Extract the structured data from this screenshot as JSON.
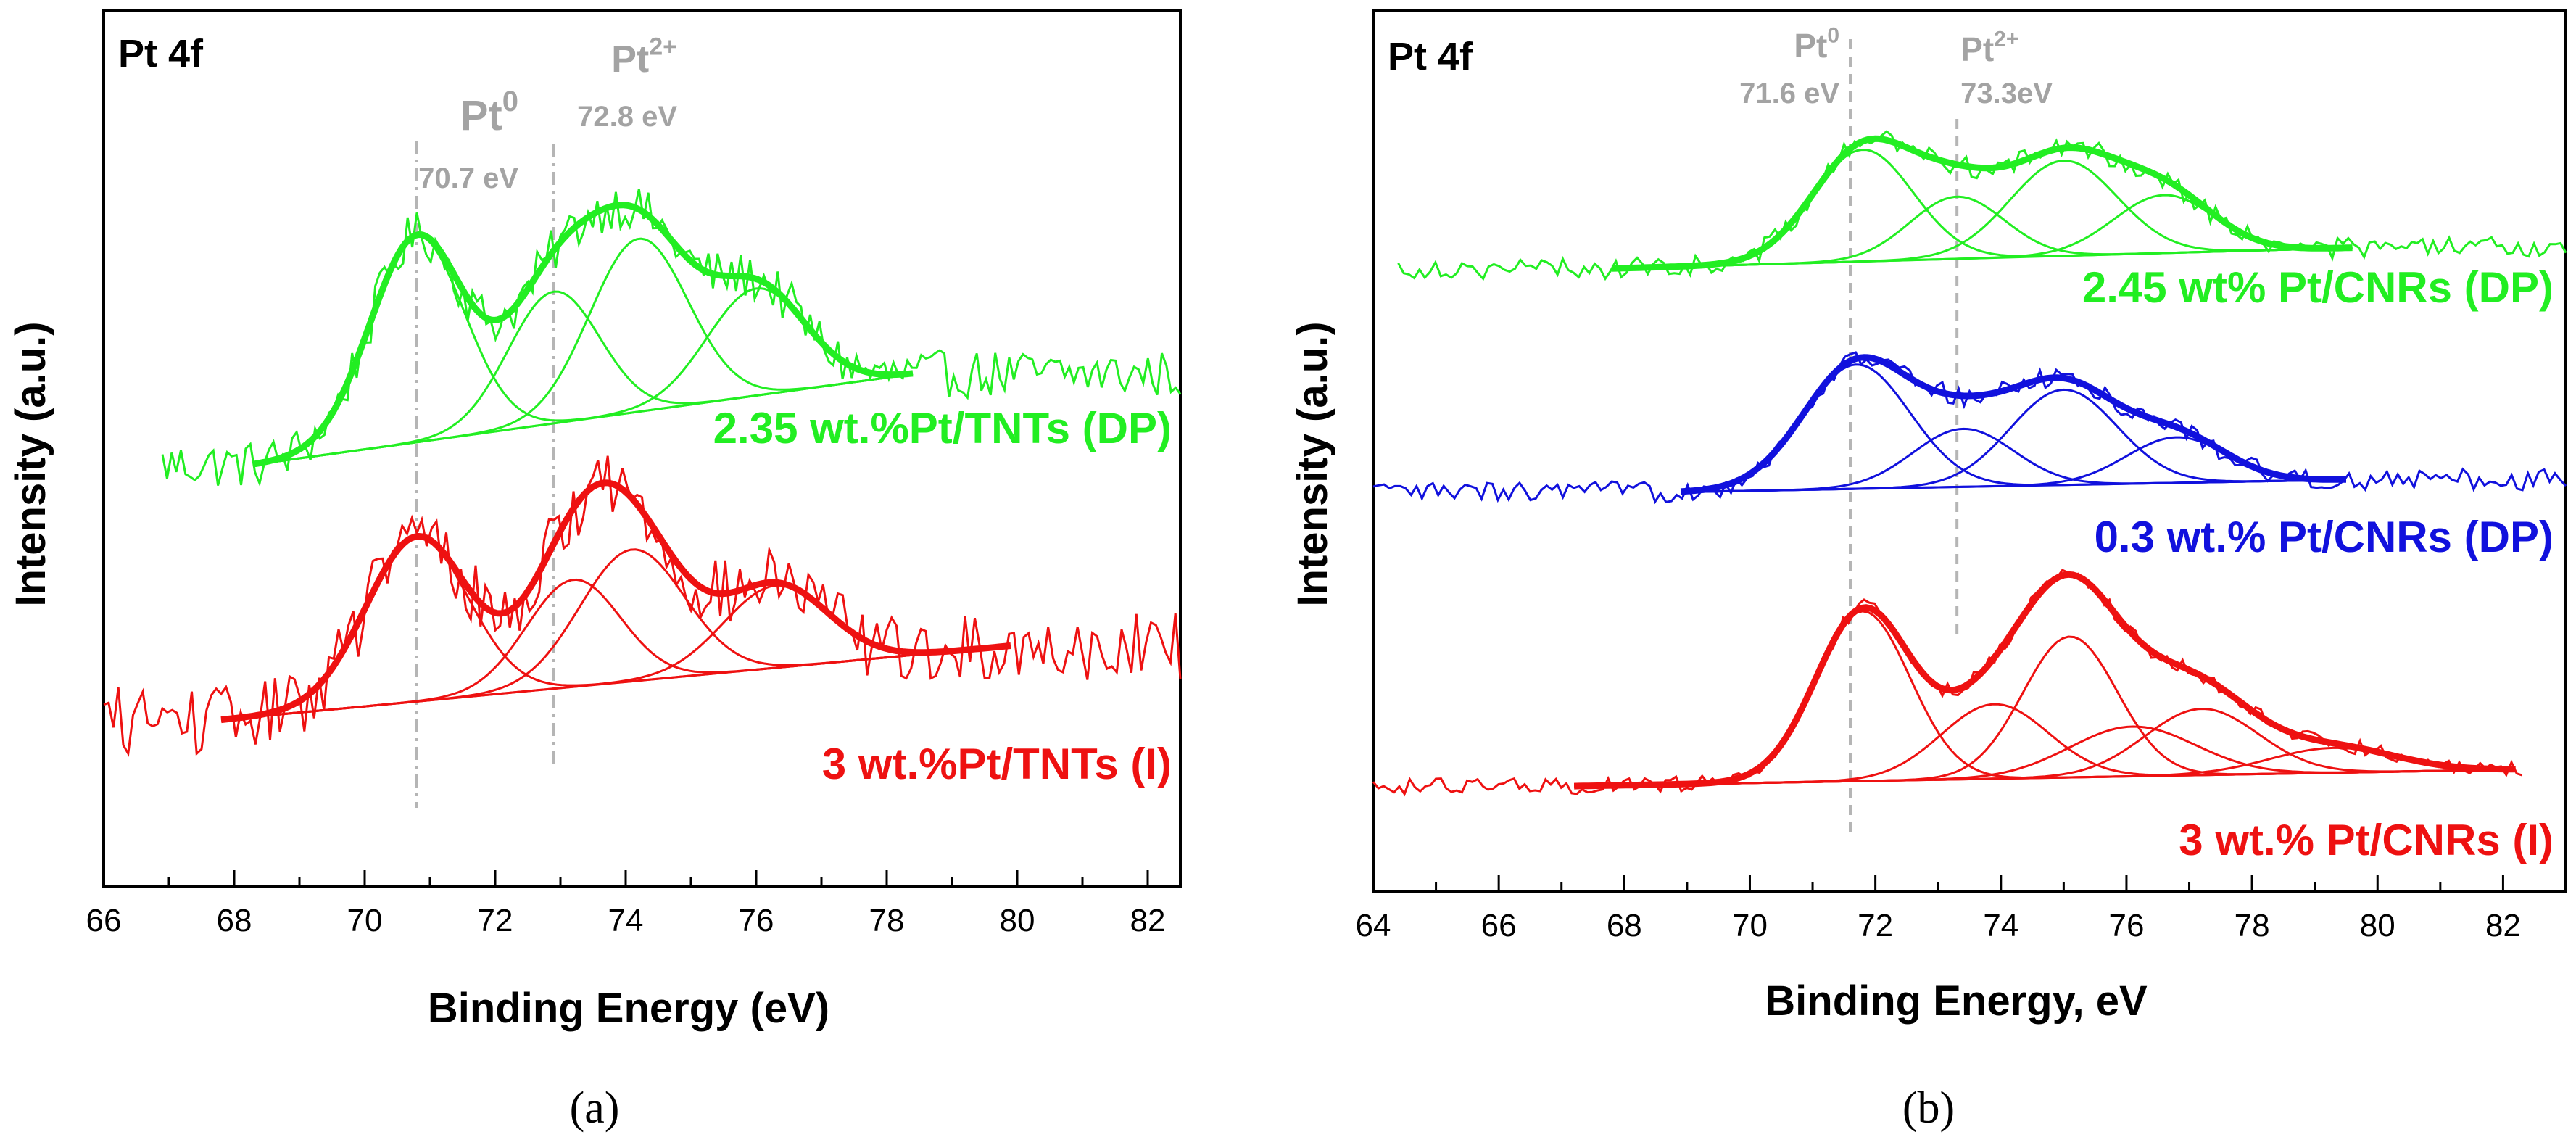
{
  "chart_data": [
    {
      "type": "line",
      "panel": "(a)",
      "title": "Pt 4f",
      "xlabel": "Binding Energy (eV)",
      "ylabel": "Intensity (a.u.)",
      "xlim": [
        66,
        82.5
      ],
      "ylim": [
        0,
        1
      ],
      "xticks": [
        "66",
        "68",
        "70",
        "72",
        "74",
        "76",
        "78",
        "80",
        "82"
      ],
      "grid": false,
      "reference_lines": [
        {
          "name": "Pt0",
          "label_base": "Pt",
          "label_sup": "0",
          "value_label": "70.7 eV",
          "x": 70.8
        },
        {
          "name": "Pt2+",
          "label_base": "Pt",
          "label_sup": "2+",
          "value_label": "72.8 eV",
          "x": 72.9
        }
      ],
      "series": [
        {
          "name": "2.35 wt.%Pt/TNTs (DP)",
          "color": "#22ee22",
          "raw_range": [
            66.9,
            82.5
          ],
          "fit_range": [
            68.3,
            78.4
          ],
          "baseline": [
            0.48,
            0.59
          ],
          "noise": 0.018,
          "peaks": [
            {
              "center": 70.8,
              "height": 0.25,
              "sigma": 0.72
            },
            {
              "center": 72.9,
              "height": 0.16,
              "sigma": 0.7
            },
            {
              "center": 74.2,
              "height": 0.21,
              "sigma": 0.75
            },
            {
              "center": 76.0,
              "height": 0.13,
              "sigma": 0.75
            }
          ]
        },
        {
          "name": "3 wt.%Pt/TNTs (I)",
          "color": "#ee1111",
          "raw_range": [
            66.0,
            82.5
          ],
          "fit_range": [
            67.8,
            79.9
          ],
          "baseline": [
            0.17,
            0.26
          ],
          "noise": 0.026,
          "peaks": [
            {
              "center": 70.8,
              "height": 0.2,
              "sigma": 0.78
            },
            {
              "center": 73.2,
              "height": 0.13,
              "sigma": 0.72
            },
            {
              "center": 74.1,
              "height": 0.16,
              "sigma": 0.8
            },
            {
              "center": 76.3,
              "height": 0.1,
              "sigma": 0.8
            }
          ]
        }
      ]
    },
    {
      "type": "line",
      "panel": "(b)",
      "title": "Pt 4f",
      "xlabel": "Binding Energy, eV",
      "ylabel": "Intensity (a.u.)",
      "xlim": [
        64,
        83
      ],
      "ylim": [
        0,
        1
      ],
      "xticks": [
        "64",
        "66",
        "68",
        "70",
        "72",
        "74",
        "76",
        "78",
        "80",
        "82"
      ],
      "grid": false,
      "reference_lines": [
        {
          "name": "Pt0",
          "label_base": "Pt",
          "label_sup": "0",
          "value_label": "71.6 eV",
          "x": 71.6
        },
        {
          "name": "Pt2+",
          "label_base": "Pt",
          "label_sup": "2+",
          "value_label": "73.3eV",
          "x": 73.3
        }
      ],
      "series": [
        {
          "name": "2.45 wt% Pt/CNRs (DP)",
          "color": "#22ee22",
          "raw_range": [
            64.4,
            83.0
          ],
          "fit_range": [
            67.8,
            79.6
          ],
          "baseline": [
            0.72,
            0.745
          ],
          "noise": 0.008,
          "peaks": [
            {
              "center": 71.8,
              "height": 0.135,
              "sigma": 0.8
            },
            {
              "center": 73.3,
              "height": 0.075,
              "sigma": 0.75
            },
            {
              "center": 75.0,
              "height": 0.115,
              "sigma": 0.85
            },
            {
              "center": 76.6,
              "height": 0.07,
              "sigma": 0.8
            }
          ]
        },
        {
          "name": "0.3 wt.% Pt/CNRs (DP)",
          "color": "#1111dd",
          "raw_range": [
            64.0,
            83.0
          ],
          "fit_range": [
            68.9,
            79.5
          ],
          "baseline": [
            0.45,
            0.465
          ],
          "noise": 0.008,
          "peaks": [
            {
              "center": 71.7,
              "height": 0.15,
              "sigma": 0.85
            },
            {
              "center": 73.4,
              "height": 0.07,
              "sigma": 0.8
            },
            {
              "center": 75.0,
              "height": 0.115,
              "sigma": 0.85
            },
            {
              "center": 76.8,
              "height": 0.055,
              "sigma": 0.8
            }
          ]
        },
        {
          "name": "3 wt.% Pt/CNRs (I)",
          "color": "#ee1111",
          "raw_range": [
            64.0,
            82.3
          ],
          "fit_range": [
            67.2,
            82.2
          ],
          "baseline": [
            0.095,
            0.115
          ],
          "noise": 0.006,
          "peaks": [
            {
              "center": 71.8,
              "height": 0.205,
              "sigma": 0.75
            },
            {
              "center": 73.9,
              "height": 0.09,
              "sigma": 0.85
            },
            {
              "center": 75.1,
              "height": 0.17,
              "sigma": 0.75
            },
            {
              "center": 76.1,
              "height": 0.06,
              "sigma": 1.0
            },
            {
              "center": 77.2,
              "height": 0.08,
              "sigma": 0.9
            },
            {
              "center": 79.3,
              "height": 0.03,
              "sigma": 1.0
            }
          ]
        }
      ]
    }
  ]
}
